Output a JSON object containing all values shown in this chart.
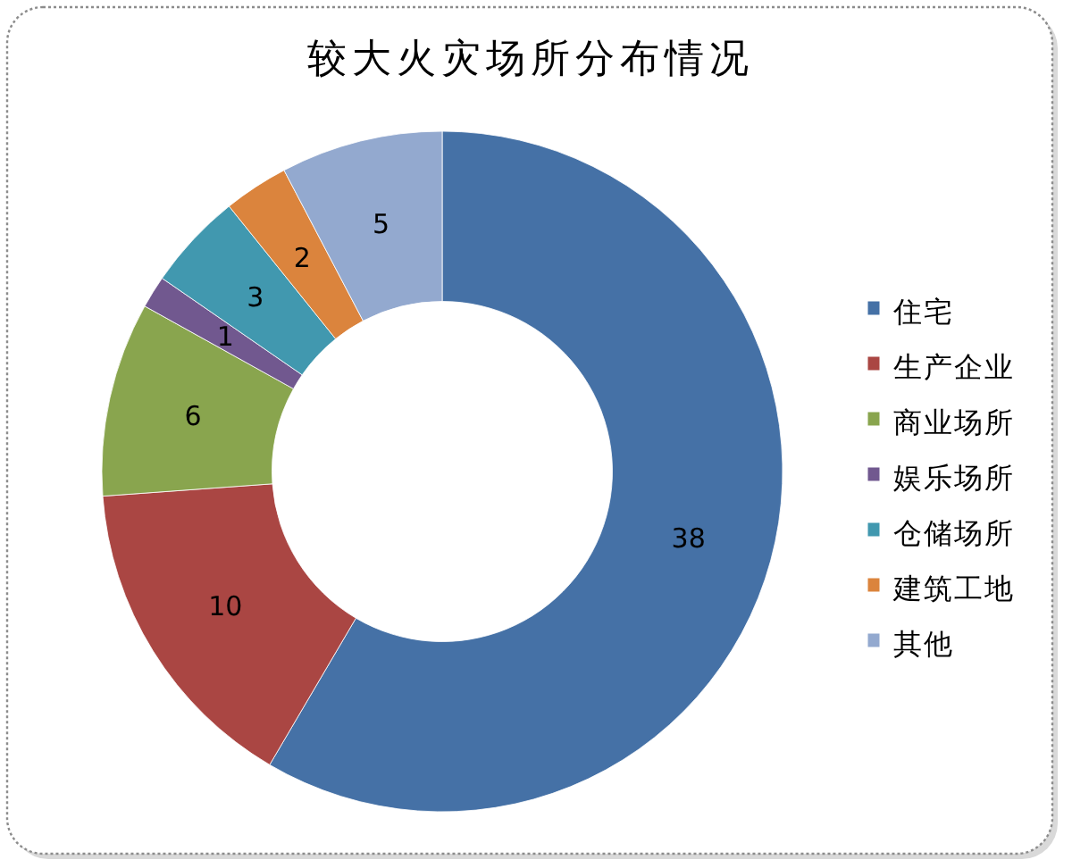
{
  "chart_data": {
    "type": "donut",
    "title": "较大火灾场所分布情况",
    "categories": [
      "住宅",
      "生产企业",
      "商业场所",
      "娱乐场所",
      "仓储场所",
      "建筑工地",
      "其他"
    ],
    "values": [
      38,
      10,
      6,
      1,
      3,
      2,
      5
    ],
    "colors": [
      "#4571a6",
      "#aa4643",
      "#89a54e",
      "#71588f",
      "#4198af",
      "#db843d",
      "#93a9cf"
    ],
    "data_labels": true,
    "legend": "right"
  }
}
